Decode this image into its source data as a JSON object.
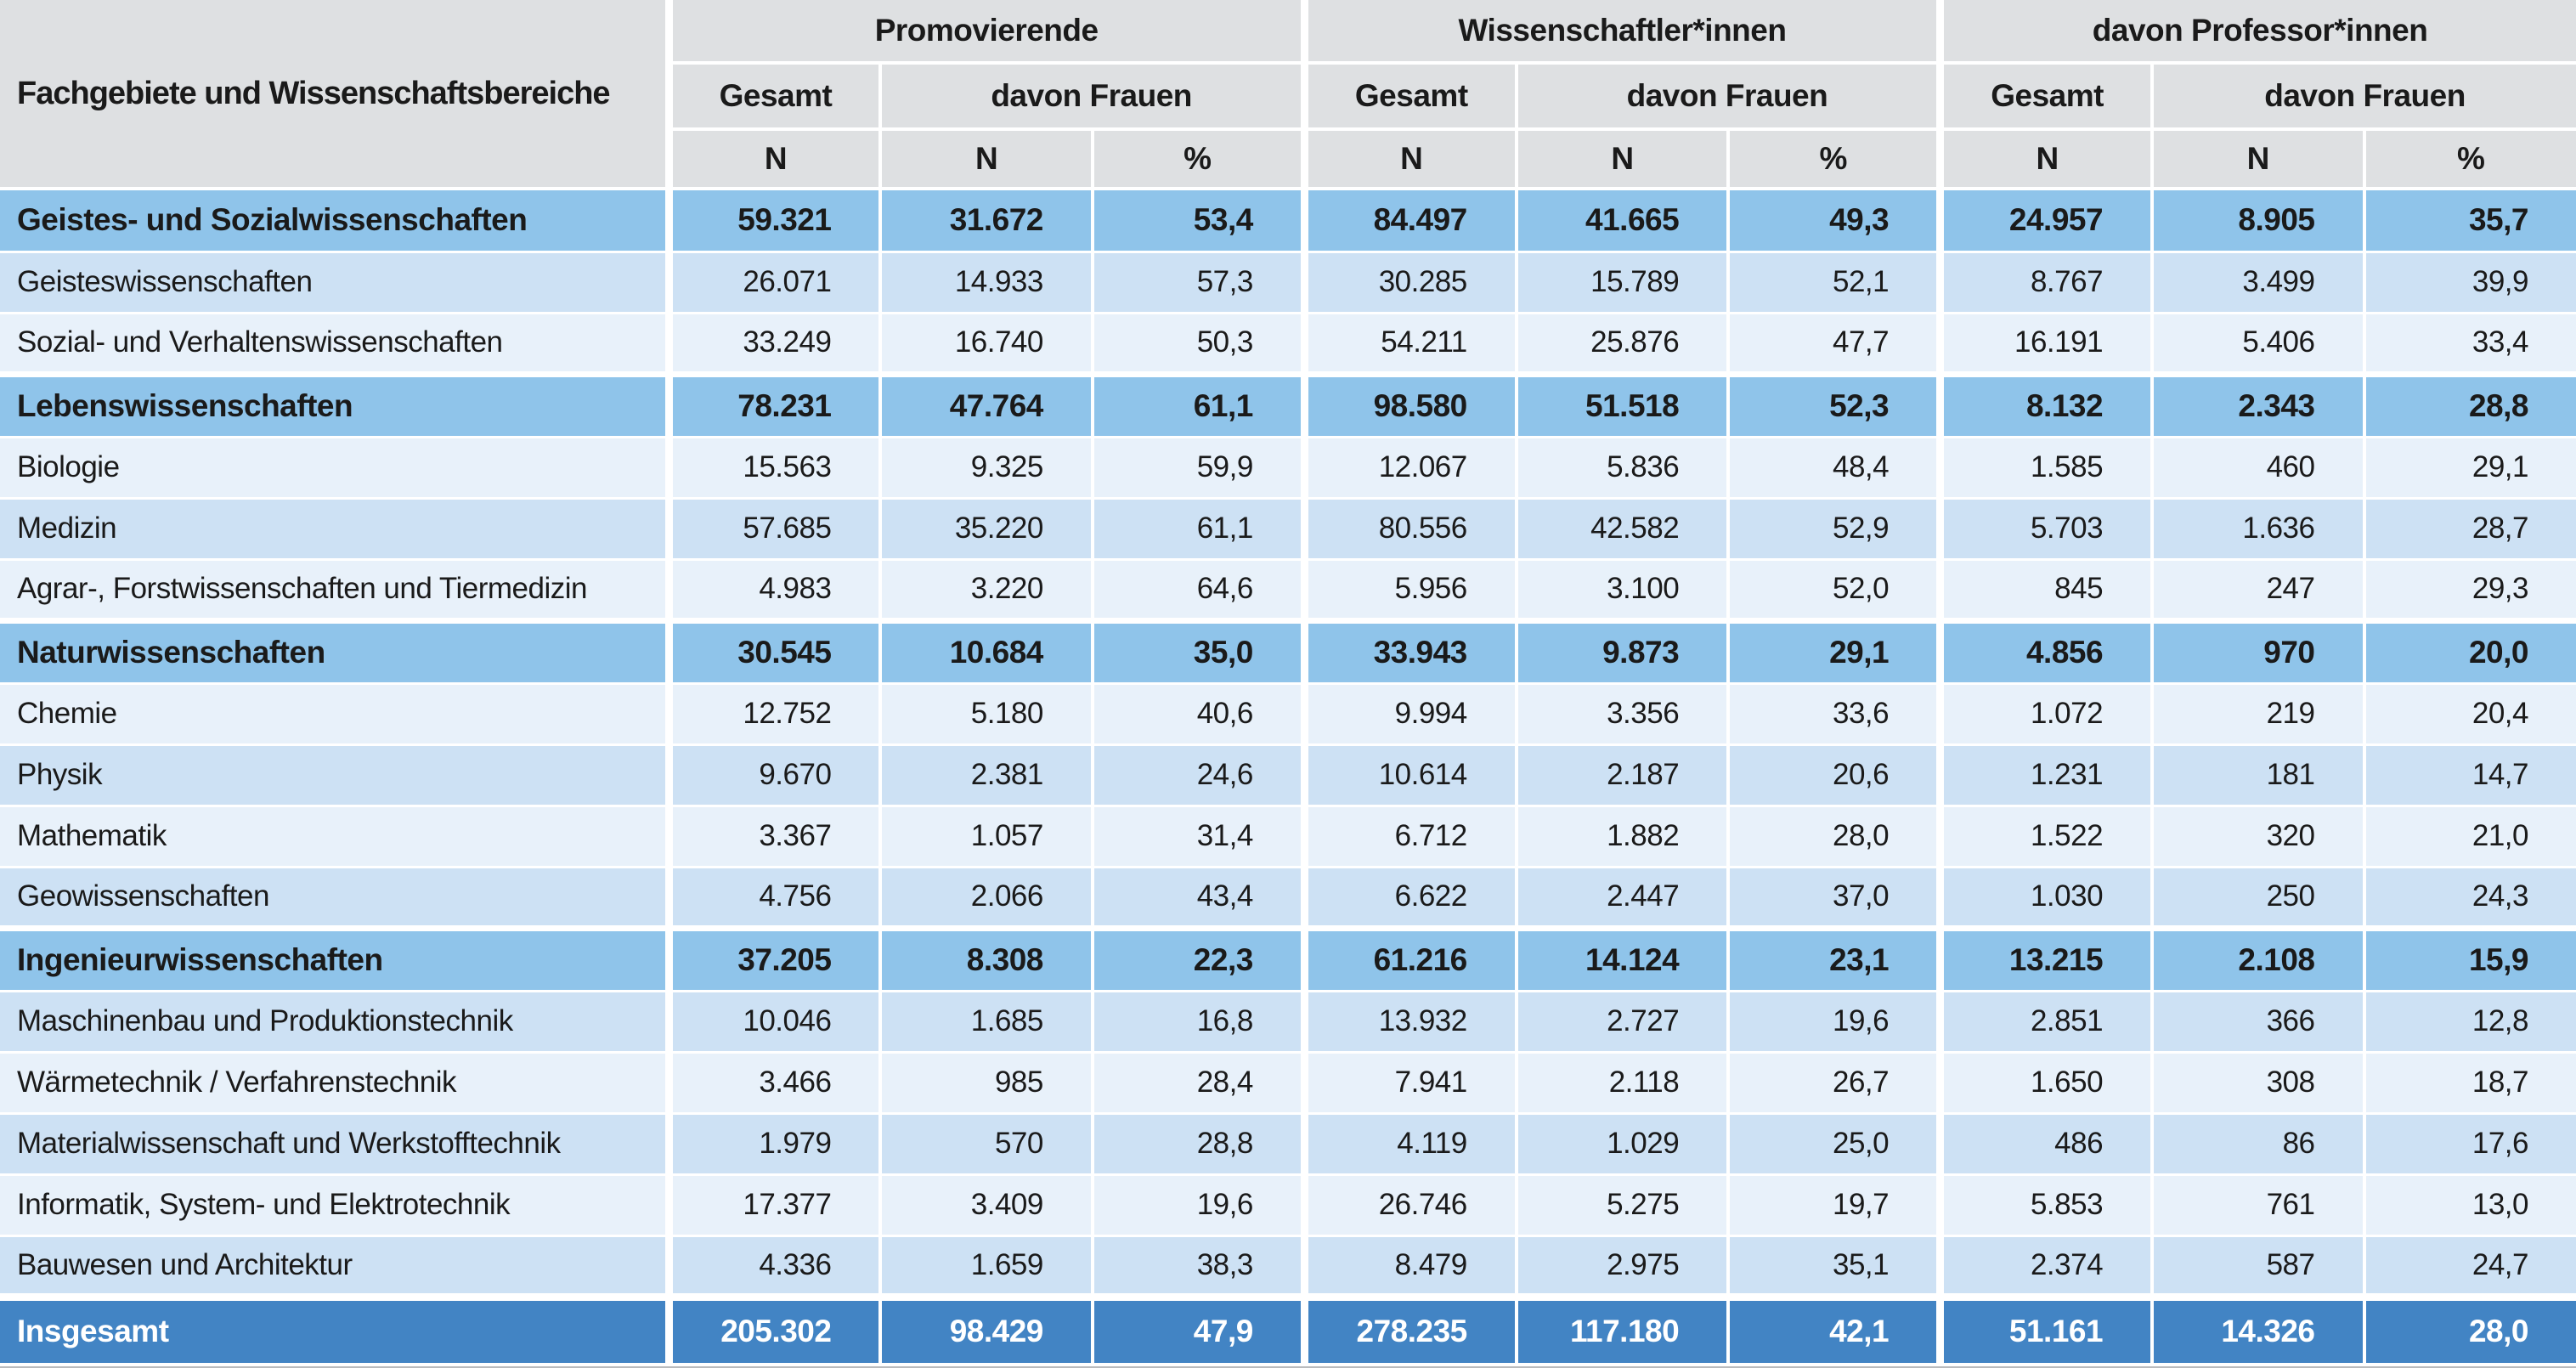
{
  "table": {
    "corner_label": "Fachgebiete und Wissenschaftsbereiche",
    "col_groups": [
      {
        "label": "Promovierende"
      },
      {
        "label": "Wissenschaftler*innen"
      },
      {
        "label": "davon Professor*innen"
      }
    ],
    "subheaders": {
      "gesamt": "Gesamt",
      "davon_frauen": "davon Frauen"
    },
    "units": {
      "n": "N",
      "pct": "%"
    },
    "rows": [
      {
        "type": "group",
        "label": "Geistes- und Sozialwissenschaften",
        "values": [
          "59.321",
          "31.672",
          "53,4",
          "84.497",
          "41.665",
          "49,3",
          "24.957",
          "8.905",
          "35,7"
        ]
      },
      {
        "type": "sub",
        "shade": "dark",
        "label": "Geisteswissenschaften",
        "values": [
          "26.071",
          "14.933",
          "57,3",
          "30.285",
          "15.789",
          "52,1",
          "8.767",
          "3.499",
          "39,9"
        ]
      },
      {
        "type": "sub",
        "shade": "light",
        "label": "Sozial- und Verhaltenswissenschaften",
        "values": [
          "33.249",
          "16.740",
          "50,3",
          "54.211",
          "25.876",
          "47,7",
          "16.191",
          "5.406",
          "33,4"
        ]
      },
      {
        "type": "group",
        "label": "Lebenswissenschaften",
        "values": [
          "78.231",
          "47.764",
          "61,1",
          "98.580",
          "51.518",
          "52,3",
          "8.132",
          "2.343",
          "28,8"
        ]
      },
      {
        "type": "sub",
        "shade": "light",
        "label": "Biologie",
        "values": [
          "15.563",
          "9.325",
          "59,9",
          "12.067",
          "5.836",
          "48,4",
          "1.585",
          "460",
          "29,1"
        ]
      },
      {
        "type": "sub",
        "shade": "dark",
        "label": "Medizin",
        "values": [
          "57.685",
          "35.220",
          "61,1",
          "80.556",
          "42.582",
          "52,9",
          "5.703",
          "1.636",
          "28,7"
        ]
      },
      {
        "type": "sub",
        "shade": "light",
        "label": "Agrar-, Forstwissenschaften und Tiermedizin",
        "values": [
          "4.983",
          "3.220",
          "64,6",
          "5.956",
          "3.100",
          "52,0",
          "845",
          "247",
          "29,3"
        ]
      },
      {
        "type": "group",
        "label": "Naturwissenschaften",
        "values": [
          "30.545",
          "10.684",
          "35,0",
          "33.943",
          "9.873",
          "29,1",
          "4.856",
          "970",
          "20,0"
        ]
      },
      {
        "type": "sub",
        "shade": "light",
        "label": "Chemie",
        "values": [
          "12.752",
          "5.180",
          "40,6",
          "9.994",
          "3.356",
          "33,6",
          "1.072",
          "219",
          "20,4"
        ]
      },
      {
        "type": "sub",
        "shade": "dark",
        "label": "Physik",
        "values": [
          "9.670",
          "2.381",
          "24,6",
          "10.614",
          "2.187",
          "20,6",
          "1.231",
          "181",
          "14,7"
        ]
      },
      {
        "type": "sub",
        "shade": "light",
        "label": "Mathematik",
        "values": [
          "3.367",
          "1.057",
          "31,4",
          "6.712",
          "1.882",
          "28,0",
          "1.522",
          "320",
          "21,0"
        ]
      },
      {
        "type": "sub",
        "shade": "dark",
        "label": "Geowissenschaften",
        "values": [
          "4.756",
          "2.066",
          "43,4",
          "6.622",
          "2.447",
          "37,0",
          "1.030",
          "250",
          "24,3"
        ]
      },
      {
        "type": "group",
        "label": "Ingenieurwissenschaften",
        "values": [
          "37.205",
          "8.308",
          "22,3",
          "61.216",
          "14.124",
          "23,1",
          "13.215",
          "2.108",
          "15,9"
        ]
      },
      {
        "type": "sub",
        "shade": "dark",
        "label": "Maschinenbau und Produktionstechnik",
        "values": [
          "10.046",
          "1.685",
          "16,8",
          "13.932",
          "2.727",
          "19,6",
          "2.851",
          "366",
          "12,8"
        ]
      },
      {
        "type": "sub",
        "shade": "light",
        "label": "Wärmetechnik / Verfahrenstechnik",
        "values": [
          "3.466",
          "985",
          "28,4",
          "7.941",
          "2.118",
          "26,7",
          "1.650",
          "308",
          "18,7"
        ]
      },
      {
        "type": "sub",
        "shade": "dark",
        "label": "Materialwissenschaft und Werkstofftechnik",
        "values": [
          "1.979",
          "570",
          "28,8",
          "4.119",
          "1.029",
          "25,0",
          "486",
          "86",
          "17,6"
        ]
      },
      {
        "type": "sub",
        "shade": "light",
        "label": "Informatik, System- und Elektrotechnik",
        "values": [
          "17.377",
          "3.409",
          "19,6",
          "26.746",
          "5.275",
          "19,7",
          "5.853",
          "761",
          "13,0"
        ]
      },
      {
        "type": "sub",
        "shade": "dark",
        "label": "Bauwesen und Architektur",
        "values": [
          "4.336",
          "1.659",
          "38,3",
          "8.479",
          "2.975",
          "35,1",
          "2.374",
          "587",
          "24,7"
        ]
      },
      {
        "type": "total",
        "label": "Insgesamt",
        "values": [
          "205.302",
          "98.429",
          "47,9",
          "278.235",
          "117.180",
          "42,1",
          "51.161",
          "14.326",
          "28,0"
        ]
      }
    ]
  },
  "colors": {
    "header_bg": "#dee0e2",
    "group_row_bg": "#8fc4ea",
    "sub_row_dark_bg": "#cde1f4",
    "sub_row_light_bg": "#e8f1fa",
    "total_row_bg": "#4284c4",
    "grid_white": "#ffffff",
    "text": "#1a1a1a",
    "total_text": "#ffffff"
  }
}
